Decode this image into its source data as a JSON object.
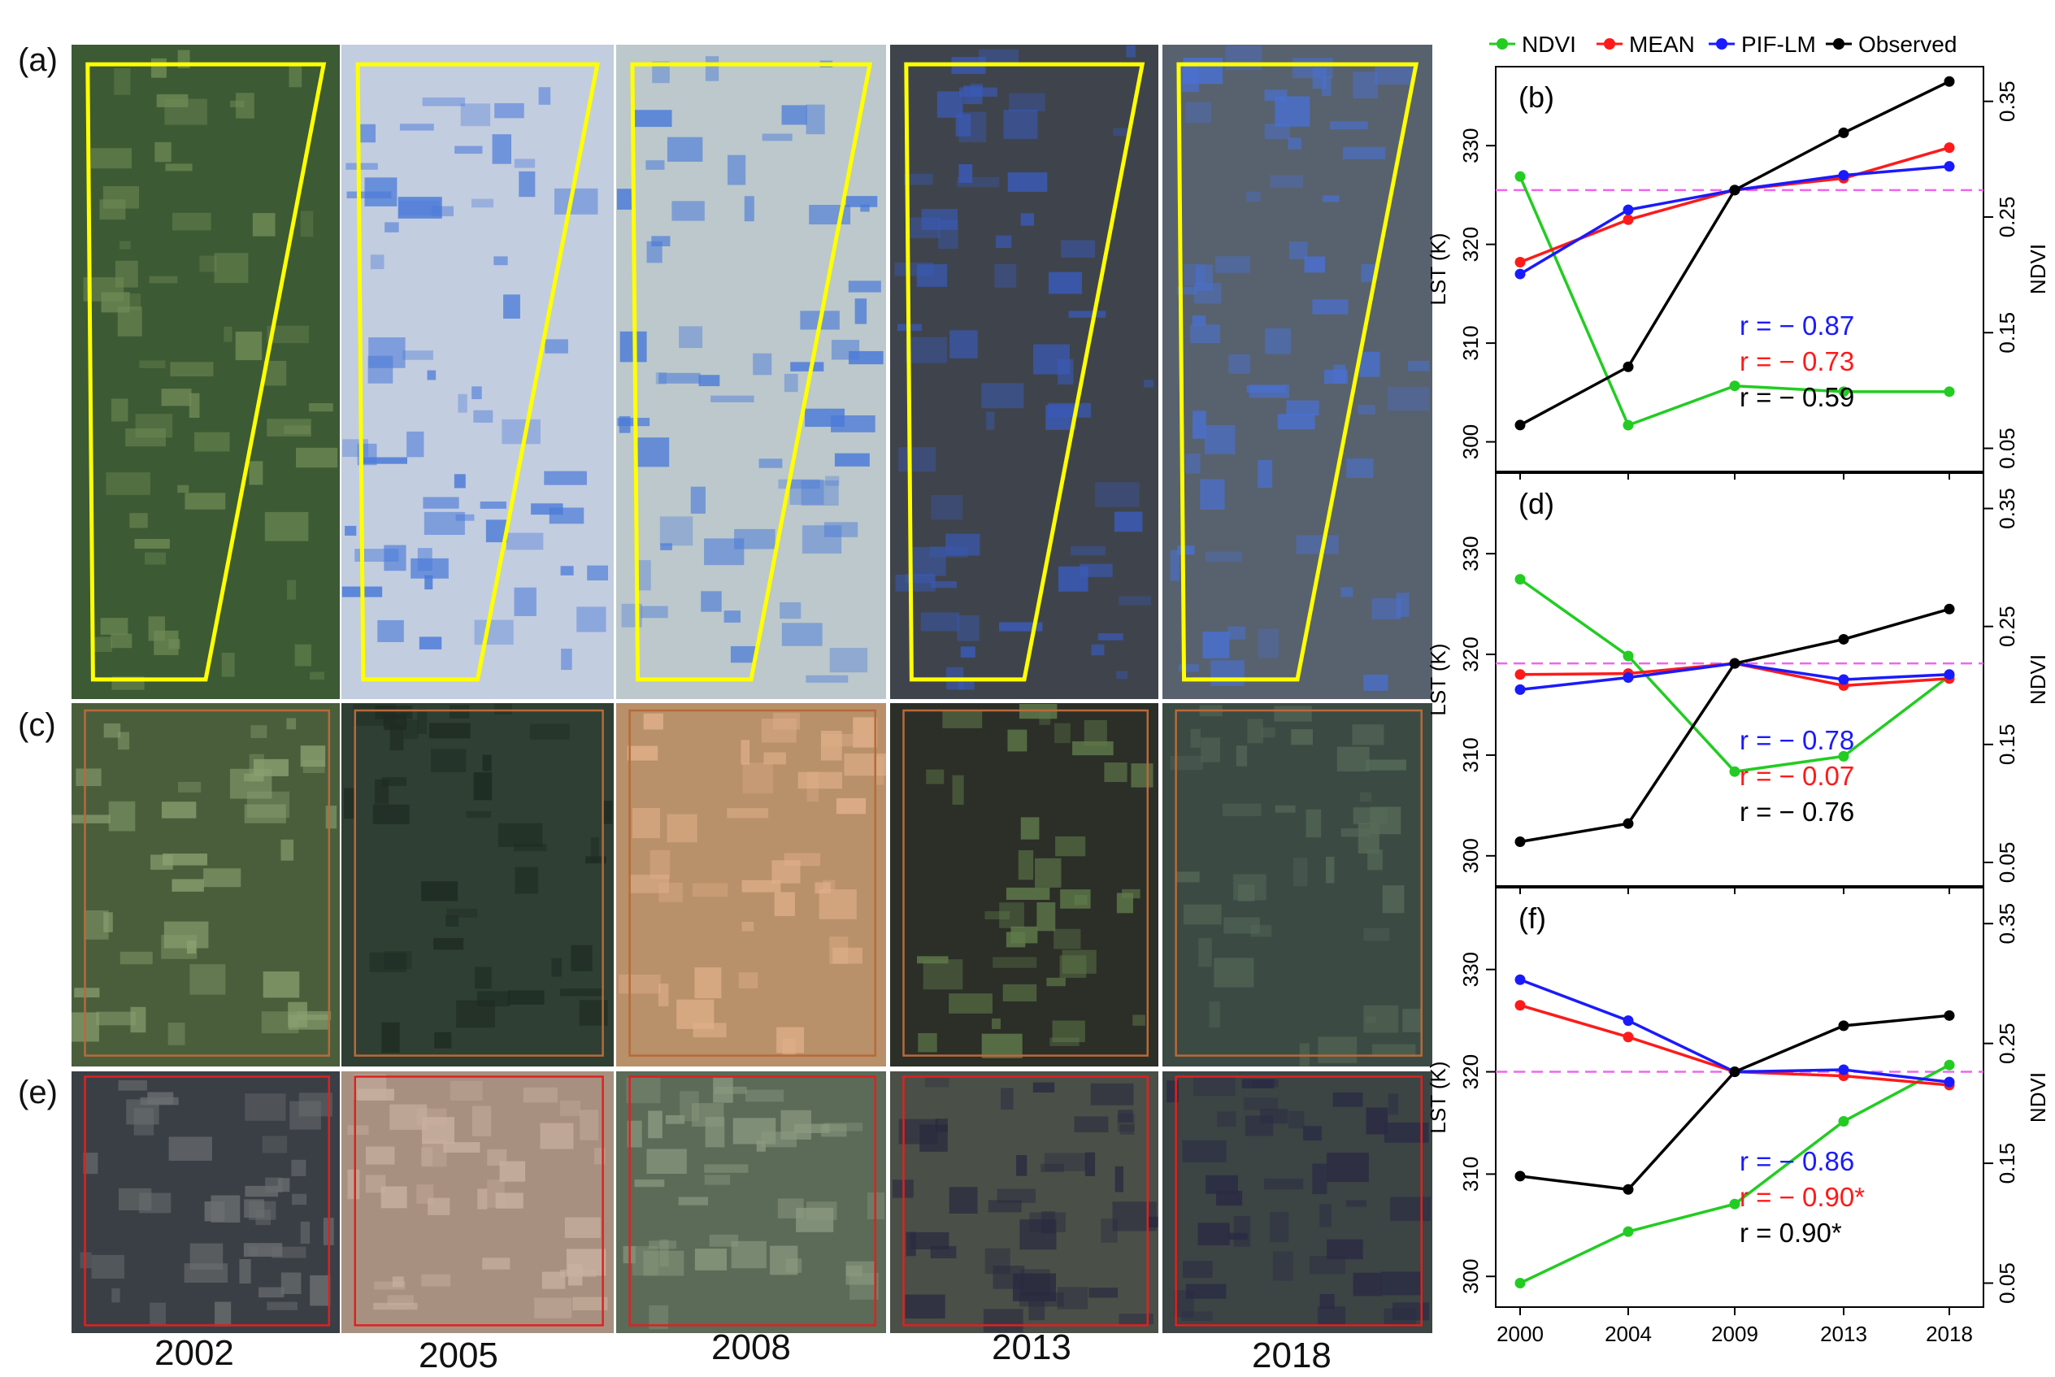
{
  "row_labels": [
    "(a)",
    "(c)",
    "(e)"
  ],
  "years": [
    "2002",
    "2005",
    "2008",
    "2013",
    "2018"
  ],
  "colors": {
    "ndvi": "#22cc22",
    "mean": "#ff1a1a",
    "pif": "#1a1aff",
    "observed": "#000000",
    "ref_line": "#ee66ee",
    "outline_a": "#ffff00",
    "outline_c": "#b86a3a",
    "outline_e": "#e02020",
    "ndvi_axis": "#22cc22"
  },
  "legend": [
    {
      "name": "NDVI",
      "color": "#22cc22"
    },
    {
      "name": "MEAN",
      "color": "#ff1a1a"
    },
    {
      "name": "PIF-LM",
      "color": "#1a1aff"
    },
    {
      "name": "Observed",
      "color": "#000000"
    }
  ],
  "chart_data": [
    {
      "type": "line",
      "panel": "(b)",
      "x": [
        "2000",
        "2004",
        "2009",
        "2013",
        "2018"
      ],
      "ylabel": "LST (K)",
      "y2label": "NDVI",
      "ylim": [
        297,
        338
      ],
      "y2lim": [
        0.03,
        0.38
      ],
      "yticks": [
        "300",
        "310",
        "320",
        "330"
      ],
      "y2ticks": [
        "0.05",
        "0.15",
        "0.25",
        "0.35"
      ],
      "reference_line": 325.5,
      "series": [
        {
          "name": "NDVI",
          "axis": "right",
          "values": [
            0.285,
            0.07,
            0.104,
            0.099,
            0.099
          ]
        },
        {
          "name": "MEAN",
          "axis": "left",
          "values": [
            318.2,
            322.5,
            325.5,
            326.7,
            329.8
          ]
        },
        {
          "name": "PIF-LM",
          "axis": "left",
          "values": [
            317.0,
            323.5,
            325.5,
            327.0,
            327.9
          ]
        },
        {
          "name": "Observed",
          "axis": "left",
          "values": [
            301.7,
            307.6,
            325.5,
            331.3,
            336.5
          ]
        }
      ],
      "annotations": [
        {
          "text": "r = − 0.87",
          "color": "#1a1aff"
        },
        {
          "text": "r = − 0.73",
          "color": "#ff1a1a"
        },
        {
          "text": "r = − 0.59",
          "color": "#000000"
        }
      ]
    },
    {
      "type": "line",
      "panel": "(d)",
      "x": [
        "2000",
        "2004",
        "2009",
        "2013",
        "2018"
      ],
      "ylabel": "LST (K)",
      "y2label": "NDVI",
      "ylim": [
        297,
        338
      ],
      "y2lim": [
        0.03,
        0.38
      ],
      "yticks": [
        "300",
        "310",
        "320",
        "330"
      ],
      "y2ticks": [
        "0.05",
        "0.15",
        "0.25",
        "0.35"
      ],
      "reference_line": 319.1,
      "series": [
        {
          "name": "NDVI",
          "axis": "right",
          "values": [
            0.29,
            0.225,
            0.127,
            0.14,
            0.208
          ]
        },
        {
          "name": "MEAN",
          "axis": "left",
          "values": [
            318.0,
            318.1,
            319.1,
            316.9,
            317.6
          ]
        },
        {
          "name": "PIF-LM",
          "axis": "left",
          "values": [
            316.5,
            317.7,
            319.1,
            317.5,
            318.0
          ]
        },
        {
          "name": "Observed",
          "axis": "left",
          "values": [
            301.4,
            303.2,
            319.1,
            321.5,
            324.5
          ]
        }
      ],
      "annotations": [
        {
          "text": "r = − 0.78",
          "color": "#1a1aff"
        },
        {
          "text": "r = − 0.07",
          "color": "#ff1a1a"
        },
        {
          "text": "r = − 0.76",
          "color": "#000000"
        }
      ]
    },
    {
      "type": "line",
      "panel": "(f)",
      "x": [
        "2000",
        "2004",
        "2009",
        "2013",
        "2018"
      ],
      "ylabel": "LST (K)",
      "y2label": "NDVI",
      "ylim": [
        297,
        338
      ],
      "y2lim": [
        0.03,
        0.38
      ],
      "yticks": [
        "300",
        "310",
        "320",
        "330"
      ],
      "y2ticks": [
        "0.05",
        "0.15",
        "0.25",
        "0.35"
      ],
      "reference_line": 320.0,
      "series": [
        {
          "name": "NDVI",
          "axis": "right",
          "values": [
            0.05,
            0.093,
            0.116,
            0.185,
            0.232
          ]
        },
        {
          "name": "MEAN",
          "axis": "left",
          "values": [
            326.5,
            323.4,
            320.0,
            319.6,
            318.7
          ]
        },
        {
          "name": "PIF-LM",
          "axis": "left",
          "values": [
            329.0,
            325.0,
            320.0,
            320.2,
            319.0
          ]
        },
        {
          "name": "Observed",
          "axis": "left",
          "values": [
            309.8,
            308.5,
            320.0,
            324.5,
            325.5
          ]
        }
      ],
      "annotations": [
        {
          "text": "r = − 0.86",
          "color": "#1a1aff"
        },
        {
          "text": "r = − 0.90*",
          "color": "#ff1a1a"
        },
        {
          "text": "r = 0.90*",
          "color": "#000000"
        }
      ]
    }
  ]
}
